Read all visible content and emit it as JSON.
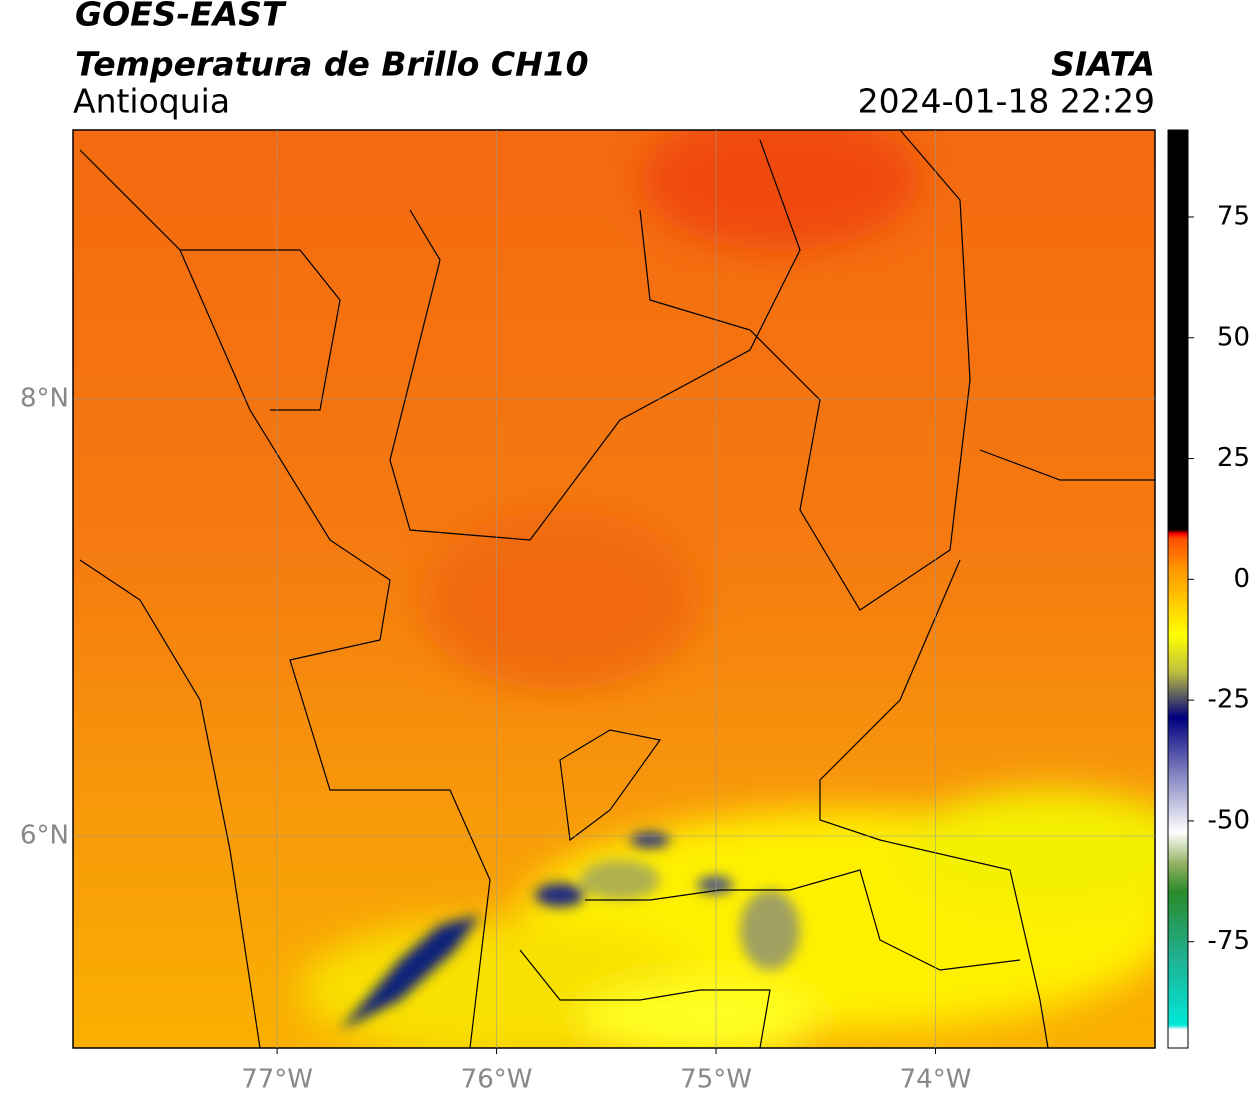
{
  "header": {
    "satellite": "GOES-EAST",
    "product": "Temperatura de Brillo CH10",
    "region": "Antioquia",
    "source": "SIATA",
    "timestamp": "2024-01-18 22:29"
  },
  "map": {
    "xlim": [
      -77.93,
      -73.0
    ],
    "ylim": [
      5.03,
      9.23
    ],
    "xticks": [
      {
        "value": -77,
        "label": "77°W"
      },
      {
        "value": -76,
        "label": "76°W"
      },
      {
        "value": -75,
        "label": "75°W"
      },
      {
        "value": -74,
        "label": "74°W"
      }
    ],
    "yticks": [
      {
        "value": 8,
        "label": "8°N"
      },
      {
        "value": 6,
        "label": "6°N"
      }
    ]
  },
  "colorbar": {
    "lim": [
      -97,
      93
    ],
    "ticks": [
      75,
      50,
      25,
      0,
      -25,
      -50,
      -75
    ]
  }
}
